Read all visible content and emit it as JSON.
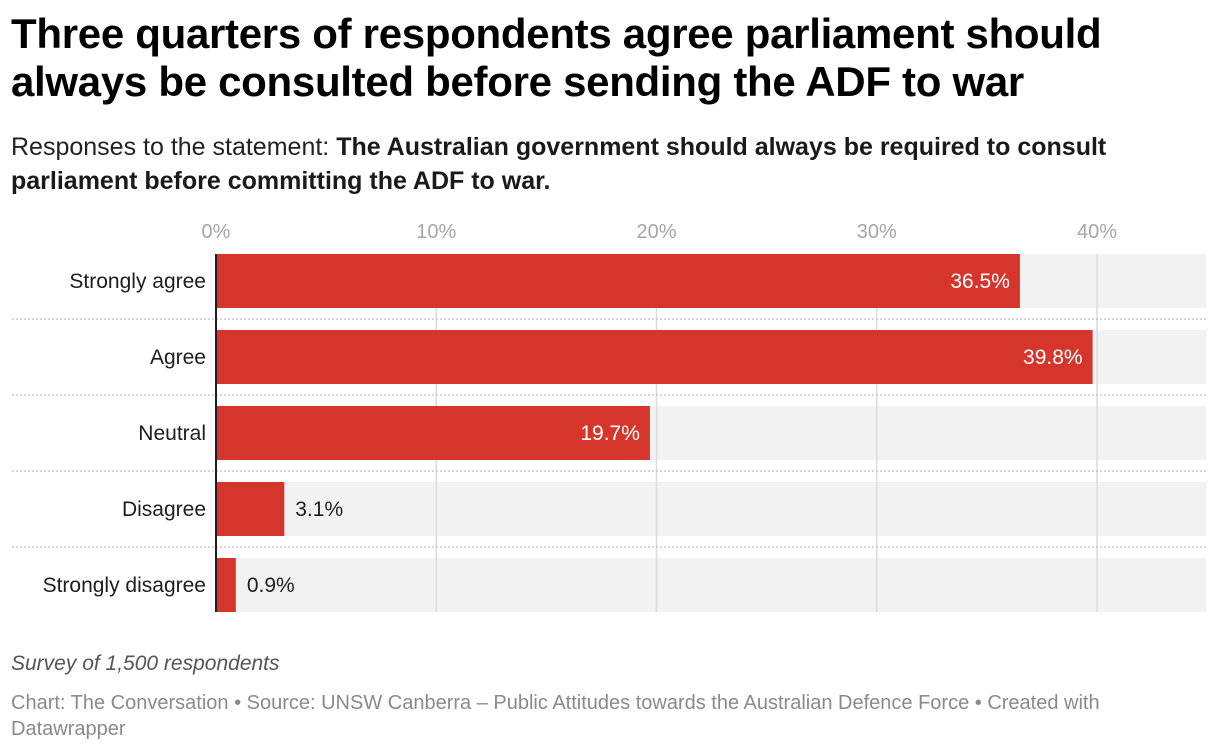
{
  "header": {
    "title": "Three quarters of respondents agree parliament should always be consulted before sending the ADF to war",
    "subtitle_prefix": "Responses to the statement: ",
    "subtitle_bold": "The Australian government should always be required to consult parliament before committing the ADF to war."
  },
  "notes": "Survey of 1,500 respondents",
  "footer": "Chart: The Conversation • Source: UNSW Canberra – Public Attitudes towards the Australian Defence Force • Created with Datawrapper",
  "colors": {
    "bar": "#d6352b",
    "track": "#f2f2f2",
    "grid": "#dcdcdc",
    "axis": "#1d1d1d",
    "label_inside": "#ffffff",
    "label_outside": "#1d1d1d"
  },
  "chart_data": {
    "type": "bar",
    "orientation": "horizontal",
    "title": "Three quarters of respondents agree parliament should always be consulted before sending the ADF to war",
    "categories": [
      "Strongly agree",
      "Agree",
      "Neutral",
      "Disagree",
      "Strongly disagree"
    ],
    "values": [
      36.5,
      39.8,
      19.7,
      3.1,
      0.9
    ],
    "value_labels": [
      "36.5%",
      "39.8%",
      "19.7%",
      "3.1%",
      "0.9%"
    ],
    "unit": "%",
    "xlim": [
      0,
      45
    ],
    "xticks": [
      0,
      10,
      20,
      30,
      40
    ],
    "xtick_labels": [
      "0%",
      "10%",
      "20%",
      "30%",
      "40%"
    ],
    "xlabel": "",
    "ylabel": "",
    "grid": true,
    "legend": "none"
  }
}
